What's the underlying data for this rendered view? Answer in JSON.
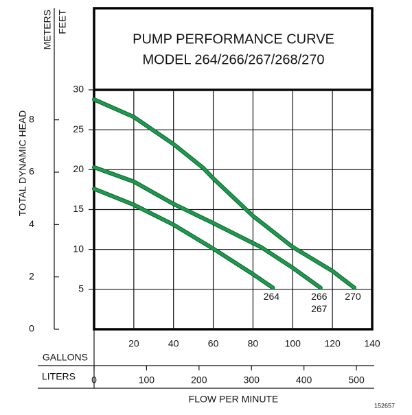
{
  "chart_data": {
    "type": "line",
    "title": [
      "PUMP PERFORMANCE CURVE",
      "MODEL 264/266/267/268/270"
    ],
    "ylabel": "TOTAL DYNAMIC HEAD",
    "ylabel_feet": "FEET",
    "ylabel_meters": "METERS",
    "xlabel": "FLOW PER MINUTE",
    "xlabel_gallons": "GALLONS",
    "xlabel_liters": "LITERS",
    "code": "152657",
    "xlim": [
      0,
      140
    ],
    "xticks": [
      20,
      40,
      60,
      80,
      100,
      120,
      140
    ],
    "x2lim": [
      0,
      530
    ],
    "x2ticks": [
      0,
      100,
      200,
      300,
      400,
      500
    ],
    "ylim": [
      0,
      30
    ],
    "yticks": [
      5,
      10,
      15,
      20,
      25,
      30
    ],
    "y2lim": [
      0,
      9.144
    ],
    "y2ticks": [
      0,
      2,
      4,
      6,
      8
    ],
    "grid": true,
    "color": "#1e9a4e",
    "series": [
      {
        "labels": [
          "264"
        ],
        "x": [
          0,
          20,
          40,
          60,
          80,
          90
        ],
        "values": [
          17.6,
          15.6,
          13.1,
          10.1,
          6.9,
          5.2
        ]
      },
      {
        "labels": [
          "266",
          "267"
        ],
        "x": [
          0,
          20,
          40,
          60,
          84,
          100,
          114
        ],
        "values": [
          20.3,
          18.5,
          15.7,
          13.3,
          10.3,
          7.7,
          5.2
        ]
      },
      {
        "labels": [
          "270"
        ],
        "x": [
          0,
          20,
          40,
          55,
          60,
          80,
          100,
          120,
          131
        ],
        "values": [
          28.8,
          26.6,
          23.2,
          20.2,
          18.9,
          14.2,
          10.3,
          7.3,
          5.2
        ]
      }
    ]
  }
}
